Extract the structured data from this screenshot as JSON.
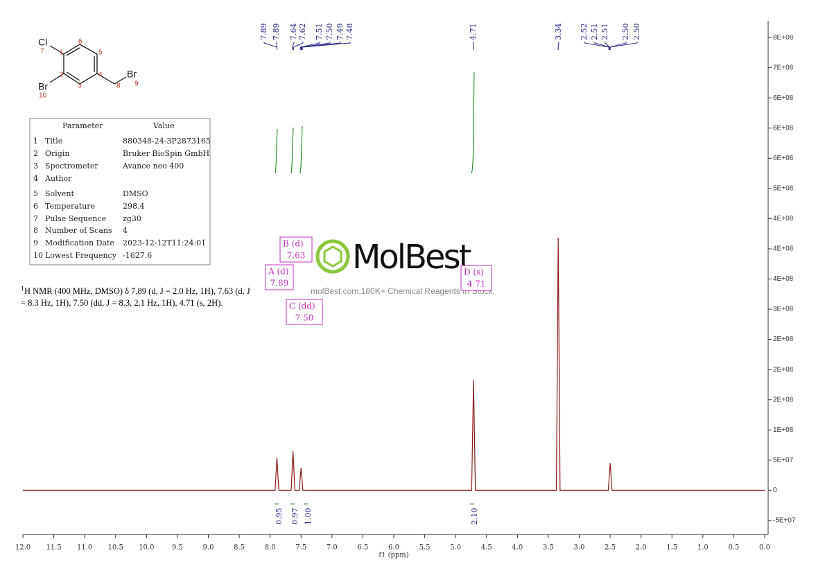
{
  "chart_data": {
    "type": "line",
    "x_label": "f1 (ppm)",
    "x": [
      12,
      7.92,
      7.89,
      7.86,
      7.66,
      7.63,
      7.6,
      7.53,
      7.5,
      7.47,
      4.74,
      4.71,
      4.68,
      3.37,
      3.34,
      3.31,
      2.53,
      2.5,
      2.47,
      0
    ],
    "values": [
      0,
      0,
      54000000,
      0,
      0,
      65000000,
      0,
      0,
      37000000,
      0,
      0,
      183000000,
      0,
      0,
      418000000,
      0,
      0,
      45000000,
      0,
      0
    ],
    "color": "#8b1a1a",
    "xlim": [
      12,
      0
    ],
    "ylim": [
      -72000000,
      772000000
    ],
    "xticks": [
      {
        "value": 12,
        "label": "12.0"
      },
      {
        "value": 11.5,
        "label": "11.5"
      },
      {
        "value": 11,
        "label": "11.0"
      },
      {
        "value": 10.5,
        "label": "10.5"
      },
      {
        "value": 10,
        "label": "10.0"
      },
      {
        "value": 9.5,
        "label": "9.5"
      },
      {
        "value": 9,
        "label": "9.0"
      },
      {
        "value": 8.5,
        "label": "8.5"
      },
      {
        "value": 8,
        "label": "8.0"
      },
      {
        "value": 7.5,
        "label": "7.5"
      },
      {
        "value": 7,
        "label": "7.0"
      },
      {
        "value": 6.5,
        "label": "6.5"
      },
      {
        "value": 6,
        "label": "6.0"
      },
      {
        "value": 5.5,
        "label": "5.5"
      },
      {
        "value": 5,
        "label": "5.0"
      },
      {
        "value": 4.5,
        "label": "4.5"
      },
      {
        "value": 4,
        "label": "4.0"
      },
      {
        "value": 3.5,
        "label": "3.5"
      },
      {
        "value": 3,
        "label": "3.0"
      },
      {
        "value": 2.5,
        "label": "2.5"
      },
      {
        "value": 2,
        "label": "2.0"
      },
      {
        "value": 1.5,
        "label": "1.5"
      },
      {
        "value": 1,
        "label": "1.0"
      },
      {
        "value": 0.5,
        "label": "0.5"
      },
      {
        "value": 0,
        "label": "0.0"
      }
    ],
    "yticks": [
      {
        "value": 750000000,
        "label": "8E+08"
      },
      {
        "value": 700000000,
        "label": "7E+08"
      },
      {
        "value": 650000000,
        "label": "6E+08"
      },
      {
        "value": 600000000,
        "label": "6E+08"
      },
      {
        "value": 550000000,
        "label": "6E+08"
      },
      {
        "value": 500000000,
        "label": "5E+08"
      },
      {
        "value": 450000000,
        "label": "4E+08"
      },
      {
        "value": 400000000,
        "label": "4E+08"
      },
      {
        "value": 350000000,
        "label": "4E+08"
      },
      {
        "value": 300000000,
        "label": "3E+08"
      },
      {
        "value": 250000000,
        "label": "2E+08"
      },
      {
        "value": 200000000,
        "label": "2E+08"
      },
      {
        "value": 150000000,
        "label": "2E+08"
      },
      {
        "value": 100000000,
        "label": "1E+08"
      },
      {
        "value": 50000000,
        "label": "5E+07"
      },
      0,
      {
        "value": -50000000,
        "label": "-5E+07"
      }
    ],
    "peak_labels": [
      7.89,
      7.89,
      7.64,
      7.62,
      7.51,
      7.5,
      7.49,
      7.48,
      4.71,
      3.34,
      2.52,
      2.51,
      2.51,
      2.5,
      2.5
    ],
    "peak_value_labels": [
      "7.89",
      "7.89",
      "7.64",
      "7.62",
      "7.51",
      "7.50",
      "7.49",
      "7.48",
      "4.71",
      "3.34",
      "2.52",
      "2.51",
      "2.51",
      "2.50",
      "2.50"
    ],
    "integrals": [
      0.95,
      0.97,
      1,
      2.1
    ],
    "integral_value_labels": [
      "0.95",
      "0.97",
      "1.00",
      "2.10"
    ]
  },
  "structure": {
    "atoms": [
      "Cl",
      "7",
      "Br",
      "10",
      "Br",
      "9",
      "1",
      "2",
      "3",
      "4",
      "5",
      "6",
      "8"
    ]
  },
  "parameters": {
    "header": [
      "Parameter",
      "Value"
    ],
    "rows": [
      [
        "1",
        "Title",
        "880348-24-3P2873165"
      ],
      [
        "2",
        "Origin",
        "Bruker BioSpin GmbH"
      ],
      [
        "3",
        "Spectrometer",
        "Avance neo 400"
      ],
      [
        "4",
        "Author",
        ""
      ],
      [
        "5",
        "Solvent",
        "DMSO"
      ],
      [
        "6",
        "Temperature",
        "298.4"
      ],
      [
        "7",
        "Pulse Sequence",
        "zg30"
      ],
      [
        "8",
        "Number of Scans",
        "4"
      ],
      [
        "9",
        "Modification Date",
        "2023-12-12T11:24:01"
      ],
      [
        "10",
        "Lowest Frequency",
        "-1627.6"
      ]
    ]
  },
  "description": {
    "sup": "1",
    "lines": [
      "H NMR (400 MHz, DMSO) δ 7.89 (d, J = 2.0 Hz, 1H), 7.63 (d, J",
      "= 8.3 Hz, 1H), 7.50 (dd, J = 8.3, 2.1 Hz, 1H), 4.71 (s, 2H)."
    ]
  },
  "multiplets": [
    {
      "name": "B (d)",
      "shift": "7.63"
    },
    {
      "name": "A (d)",
      "shift": "7.89"
    },
    {
      "name": "C (dd)",
      "shift": "7.50"
    },
    {
      "name": "D (s)",
      "shift": "4.71"
    }
  ],
  "watermark": {
    "logo": "MolBest",
    "tagline": "molBest.com,180K+ Chemical Reagents In Stock."
  }
}
